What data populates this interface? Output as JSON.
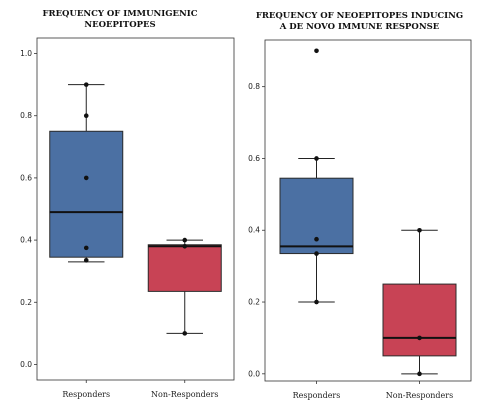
{
  "chart_data": [
    {
      "type": "box",
      "title_lines": [
        "FREQUENCY OF IMMUNIGENIC",
        "NEOEPITOPES"
      ],
      "categories": [
        "Responders",
        "Non-Responders"
      ],
      "ylim": [
        -0.05,
        1.05
      ],
      "yticks": [
        "0.0",
        "0.2",
        "0.4",
        "0.6",
        "0.8",
        "1.0"
      ],
      "grid": false,
      "boxes": [
        {
          "name": "Responders",
          "color": "#4b70a3",
          "whisker_low": 0.33,
          "q1": 0.345,
          "median": 0.49,
          "q3": 0.75,
          "whisker_high": 0.9,
          "points": [
            0.9,
            0.8,
            0.6,
            0.375,
            0.335
          ]
        },
        {
          "name": "Non-Responders",
          "color": "#c84355",
          "whisker_low": 0.1,
          "q1": 0.235,
          "median": 0.38,
          "q3": 0.385,
          "whisker_high": 0.4,
          "points": [
            0.4,
            0.38,
            0.1
          ]
        }
      ]
    },
    {
      "type": "box",
      "title_lines": [
        "FREQUENCY OF NEOEPITOPES INDUCING",
        "A DE NOVO IMMUNE RESPONSE"
      ],
      "categories": [
        "Responders",
        "Non-Responders"
      ],
      "ylim": [
        -0.02,
        0.93
      ],
      "yticks": [
        "0.0",
        "0.2",
        "0.4",
        "0.6",
        "0.8"
      ],
      "grid": false,
      "boxes": [
        {
          "name": "Responders",
          "color": "#4b70a3",
          "whisker_low": 0.2,
          "q1": 0.335,
          "median": 0.355,
          "q3": 0.545,
          "whisker_high": 0.6,
          "points": [
            0.9,
            0.6,
            0.375,
            0.335,
            0.2
          ]
        },
        {
          "name": "Non-Responders",
          "color": "#c84355",
          "whisker_low": 0.0,
          "q1": 0.05,
          "median": 0.1,
          "q3": 0.25,
          "whisker_high": 0.4,
          "points": [
            0.4,
            0.1,
            0.0
          ]
        }
      ]
    }
  ]
}
